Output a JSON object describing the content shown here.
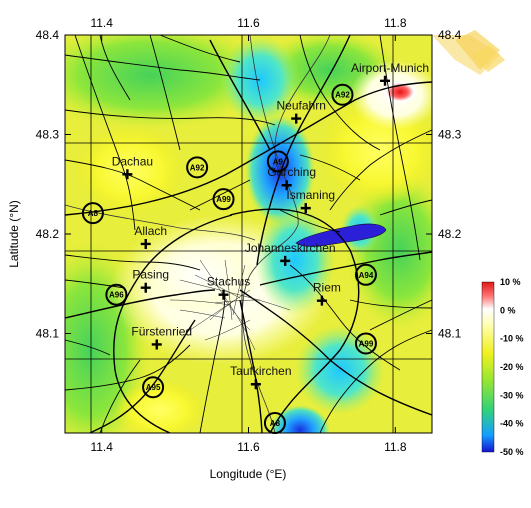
{
  "axes": {
    "xlabel": "Longitude (°E)",
    "ylabel": "Latitude (°N)",
    "xlim": [
      11.35,
      11.85
    ],
    "ylim": [
      48.0,
      48.4
    ],
    "xticks": [
      "11.4",
      "11.6",
      "11.8"
    ],
    "yticks": [
      "48.1",
      "48.2",
      "48.3",
      "48.4"
    ],
    "grid": true
  },
  "places": [
    {
      "name": "Airport-Munich",
      "lon": 11.786,
      "lat": 48.354
    },
    {
      "name": "Neufahrn",
      "lon": 11.665,
      "lat": 48.316
    },
    {
      "name": "Dachau",
      "lon": 11.435,
      "lat": 48.26
    },
    {
      "name": "Garching",
      "lon": 11.652,
      "lat": 48.249
    },
    {
      "name": "Ismaning",
      "lon": 11.678,
      "lat": 48.226
    },
    {
      "name": "Allach",
      "lon": 11.46,
      "lat": 48.19
    },
    {
      "name": "Johanneskirchen",
      "lon": 11.65,
      "lat": 48.173
    },
    {
      "name": "Pasing",
      "lon": 11.46,
      "lat": 48.146
    },
    {
      "name": "Stachus",
      "lon": 11.566,
      "lat": 48.139
    },
    {
      "name": "Riem",
      "lon": 11.7,
      "lat": 48.133
    },
    {
      "name": "Fürstenried",
      "lon": 11.475,
      "lat": 48.089
    },
    {
      "name": "Taufkirchen",
      "lon": 11.61,
      "lat": 48.049
    }
  ],
  "motorways": [
    {
      "label": "A92",
      "lon": 11.728,
      "lat": 48.34
    },
    {
      "label": "A9",
      "lon": 11.64,
      "lat": 48.273
    },
    {
      "label": "A92",
      "lon": 11.53,
      "lat": 48.267
    },
    {
      "label": "A99",
      "lon": 11.566,
      "lat": 48.235
    },
    {
      "label": "A8",
      "lon": 11.388,
      "lat": 48.221
    },
    {
      "label": "A96",
      "lon": 11.42,
      "lat": 48.139
    },
    {
      "label": "A94",
      "lon": 11.76,
      "lat": 48.159
    },
    {
      "label": "A99",
      "lon": 11.76,
      "lat": 48.09
    },
    {
      "label": "A95",
      "lon": 11.47,
      "lat": 48.046
    },
    {
      "label": "A8",
      "lon": 11.636,
      "lat": 48.01
    }
  ],
  "legend": {
    "labels": [
      "10 %",
      "0 %",
      "-10 %",
      "-20 %",
      "-30 %",
      "-40 %",
      "-50 %"
    ],
    "range": [
      -50,
      10
    ],
    "colors": [
      "#1e1ee0",
      "#18b4ff",
      "#3cdc6e",
      "#a0e632",
      "#f0f01e",
      "#ffffb4",
      "#ffffff",
      "#ff5050",
      "#e61e1e"
    ]
  },
  "colors": {
    "lake": "#2b1fd8",
    "background_field": "#e8ee3c",
    "watermark": "#f5c830"
  }
}
